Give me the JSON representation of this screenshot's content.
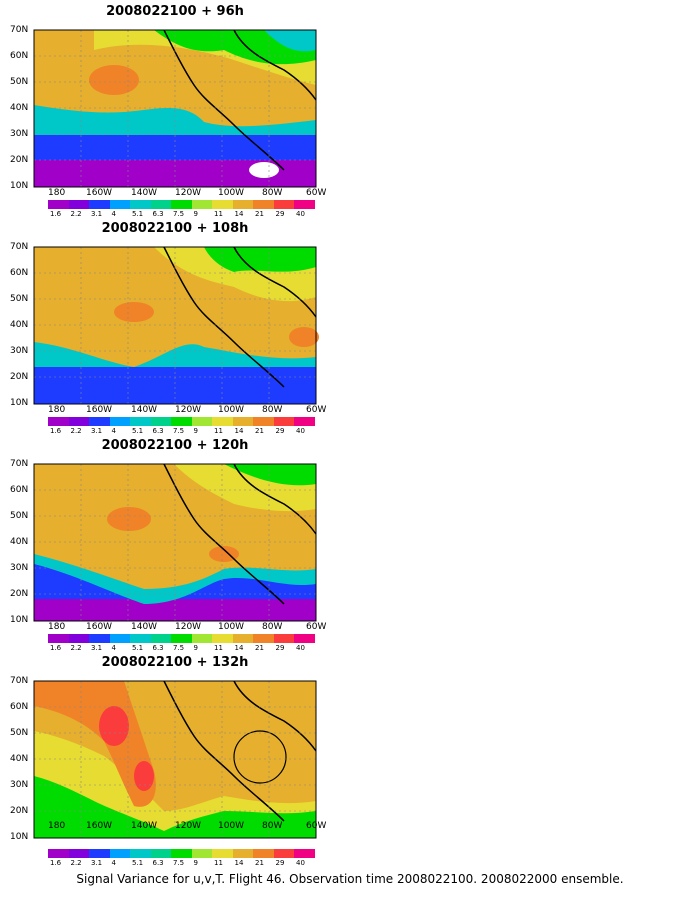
{
  "maps": [
    {
      "title": "2008022100  + 96h"
    },
    {
      "title": "2008022100  + 108h"
    },
    {
      "title": "2008022100  + 120h"
    },
    {
      "title": "2008022100  + 132h"
    }
  ],
  "lat_labels": [
    "70N",
    "60N",
    "50N",
    "40N",
    "30N",
    "20N",
    "10N"
  ],
  "lon_labels": [
    "180",
    "160W",
    "140W",
    "120W",
    "100W",
    "80W",
    "60W"
  ],
  "colorbar": {
    "labels": [
      "1.6",
      "2.2",
      "3.1",
      "4",
      "5.1",
      "6.3",
      "7.5",
      "9",
      "11",
      "14",
      "21",
      "29",
      "40"
    ],
    "colors": [
      "#a000c8",
      "#8200dc",
      "#1e3cff",
      "#00a0ff",
      "#00c8c8",
      "#00d28c",
      "#00dc00",
      "#a0e632",
      "#e6dc32",
      "#e6af2d",
      "#f08228",
      "#fa3c3c",
      "#f00082"
    ]
  },
  "caption": "Signal Variance for u,v,T. Flight 46. Observation time 2008022100. 2008022000 ensemble."
}
